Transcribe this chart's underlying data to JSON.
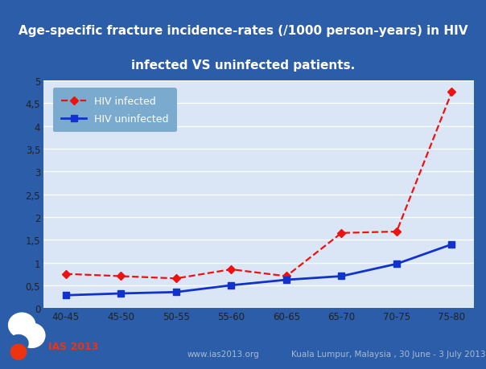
{
  "title_line1": "Age-specific fracture incidence-rates (/1000 person-years) in HIV",
  "title_line2": "infected VS uninfected patients.",
  "categories": [
    "40-45",
    "45-50",
    "50-55",
    "55-60",
    "60-65",
    "65-70",
    "70-75",
    "75-80"
  ],
  "hiv_infected": [
    0.75,
    0.7,
    0.65,
    0.85,
    0.7,
    1.65,
    1.68,
    4.75
  ],
  "hiv_uninfected": [
    0.28,
    0.32,
    0.35,
    0.5,
    0.62,
    0.7,
    0.97,
    1.4
  ],
  "ylim": [
    0,
    5
  ],
  "yticks": [
    0,
    0.5,
    1.0,
    1.5,
    2.0,
    2.5,
    3.0,
    3.5,
    4.0,
    4.5,
    5.0
  ],
  "ytick_labels": [
    "0",
    "0,5",
    "1",
    "1,5",
    "2",
    "2,5",
    "3",
    "3,5",
    "4",
    "4,5",
    "5"
  ],
  "bg_color": "#2B5DA8",
  "chart_bg": "#DAE6F5",
  "title_color": "white",
  "infected_color": "#EE1111",
  "uninfected_color": "#1133CC",
  "legend_bg": "#7BAACF",
  "legend_label_color": "white",
  "footer_text1": "www.ias2013.org",
  "footer_text2": "Kuala Lumpur, Malaysia , 30 June - 3 July 2013",
  "footer_color": "#AABBD0",
  "ias_color": "#EE3311"
}
